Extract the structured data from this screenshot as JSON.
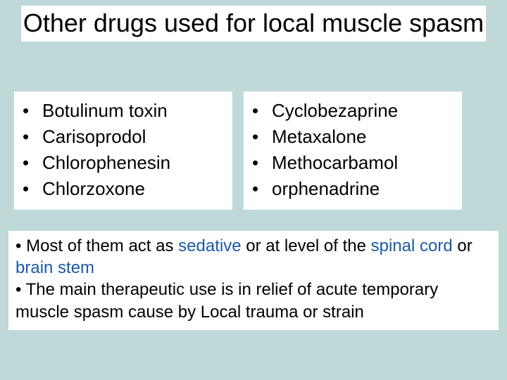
{
  "colors": {
    "background": "#bfd8d8",
    "panel": "#ffffff",
    "text": "#000000",
    "highlight": "#1b5aa6"
  },
  "typography": {
    "title_fontsize": 36,
    "body_fontsize": 26,
    "notes_fontsize": 24,
    "font_family": "Arial"
  },
  "title": "Other drugs used for local muscle spasm",
  "left_list": {
    "items": [
      "Botulinum toxin",
      "Carisoprodol",
      "Chlorophenesin",
      "Chlorzoxone"
    ]
  },
  "right_list": {
    "items": [
      "Cyclobezaprine",
      "Metaxalone",
      "Methocarbamol",
      "orphenadrine"
    ]
  },
  "bullet_glyph": "•",
  "notes": {
    "line1": {
      "prefix": "• Most of them act as ",
      "hl1": "sedative",
      "mid1": " or at level of the ",
      "hl2": "spinal cord",
      "mid2": " or ",
      "hl3": "brain stem"
    },
    "line2": "• The main therapeutic use is in relief of acute temporary muscle spasm cause by Local trauma or strain"
  }
}
